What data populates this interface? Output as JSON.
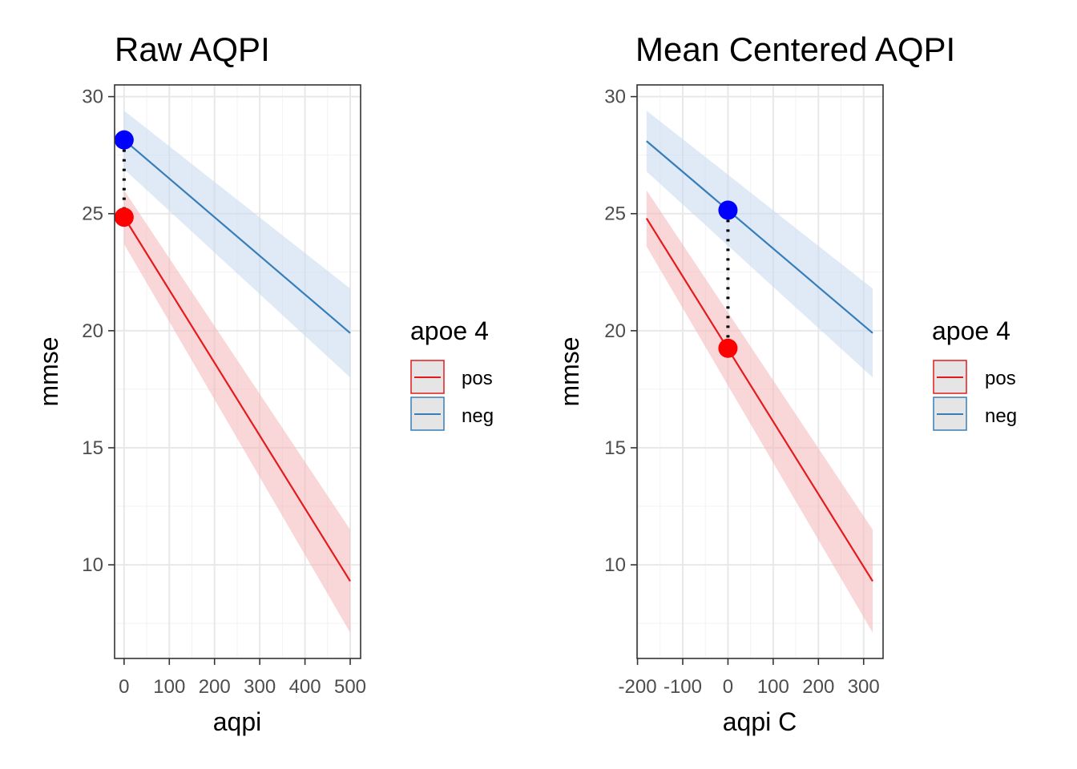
{
  "chart_data": [
    {
      "type": "line",
      "title": "Raw AQPI",
      "xlabel": "aqpi",
      "ylabel": "mmse",
      "xlim": [
        -21,
        523
      ],
      "ylim": [
        6.0,
        30.5
      ],
      "x_ticks": [
        0,
        100,
        200,
        300,
        400,
        500
      ],
      "x_tick_labels": [
        "0",
        "100",
        "200",
        "300",
        "400",
        "500"
      ],
      "y_ticks": [
        10,
        15,
        20,
        25,
        30
      ],
      "y_tick_labels": [
        "10",
        "15",
        "20",
        "25",
        "30"
      ],
      "grid": true,
      "legend": {
        "title": "apoe 4",
        "placement": "right",
        "entries": [
          "pos",
          "neg"
        ]
      },
      "series": [
        {
          "name": "pos",
          "color": "#e41a1c",
          "fill": "#f4b6b8",
          "x": [
            0,
            500
          ],
          "y": [
            24.85,
            9.3
          ],
          "ci_lower": [
            23.7,
            7.1
          ],
          "ci_upper": [
            26.0,
            11.5
          ]
        },
        {
          "name": "neg",
          "color": "#377eb8",
          "fill": "#c6d9ee",
          "x": [
            0,
            500
          ],
          "y": [
            28.15,
            19.9
          ],
          "ci_lower": [
            26.9,
            18.0
          ],
          "ci_upper": [
            29.4,
            21.8
          ]
        }
      ],
      "annotations": [
        {
          "kind": "point",
          "x": 0,
          "y": 28.15,
          "color": "#0000ff"
        },
        {
          "kind": "point",
          "x": 0,
          "y": 24.85,
          "color": "#ff0000"
        },
        {
          "kind": "dotted-segment",
          "x": 0,
          "y_from": 28.15,
          "y_to": 24.85
        }
      ]
    },
    {
      "type": "line",
      "title": "Mean Centered AQPI",
      "xlabel": "aqpi C",
      "ylabel": "mmse",
      "xlim": [
        -201,
        343
      ],
      "ylim": [
        6.0,
        30.5
      ],
      "x_ticks": [
        -200,
        -100,
        0,
        100,
        200,
        300
      ],
      "x_tick_labels": [
        "-200",
        "-100",
        "0",
        "100",
        "200",
        "300"
      ],
      "y_ticks": [
        10,
        15,
        20,
        25,
        30
      ],
      "y_tick_labels": [
        "10",
        "15",
        "20",
        "25",
        "30"
      ],
      "grid": true,
      "legend": {
        "title": "apoe 4",
        "placement": "right",
        "entries": [
          "pos",
          "neg"
        ]
      },
      "series": [
        {
          "name": "pos",
          "color": "#e41a1c",
          "fill": "#f4b6b8",
          "x": [
            -180,
            320
          ],
          "y": [
            24.8,
            9.3
          ],
          "ci_lower": [
            23.6,
            7.1
          ],
          "ci_upper": [
            26.0,
            11.5
          ]
        },
        {
          "name": "neg",
          "color": "#377eb8",
          "fill": "#c6d9ee",
          "x": [
            -180,
            320
          ],
          "y": [
            28.1,
            19.9
          ],
          "ci_lower": [
            26.8,
            18.0
          ],
          "ci_upper": [
            29.4,
            21.8
          ]
        }
      ],
      "annotations": [
        {
          "kind": "point",
          "x": 0,
          "y": 25.15,
          "color": "#0000ff"
        },
        {
          "kind": "point",
          "x": 0,
          "y": 19.25,
          "color": "#ff0000"
        },
        {
          "kind": "dotted-segment",
          "x": 0,
          "y_from": 25.15,
          "y_to": 19.25
        }
      ]
    }
  ]
}
